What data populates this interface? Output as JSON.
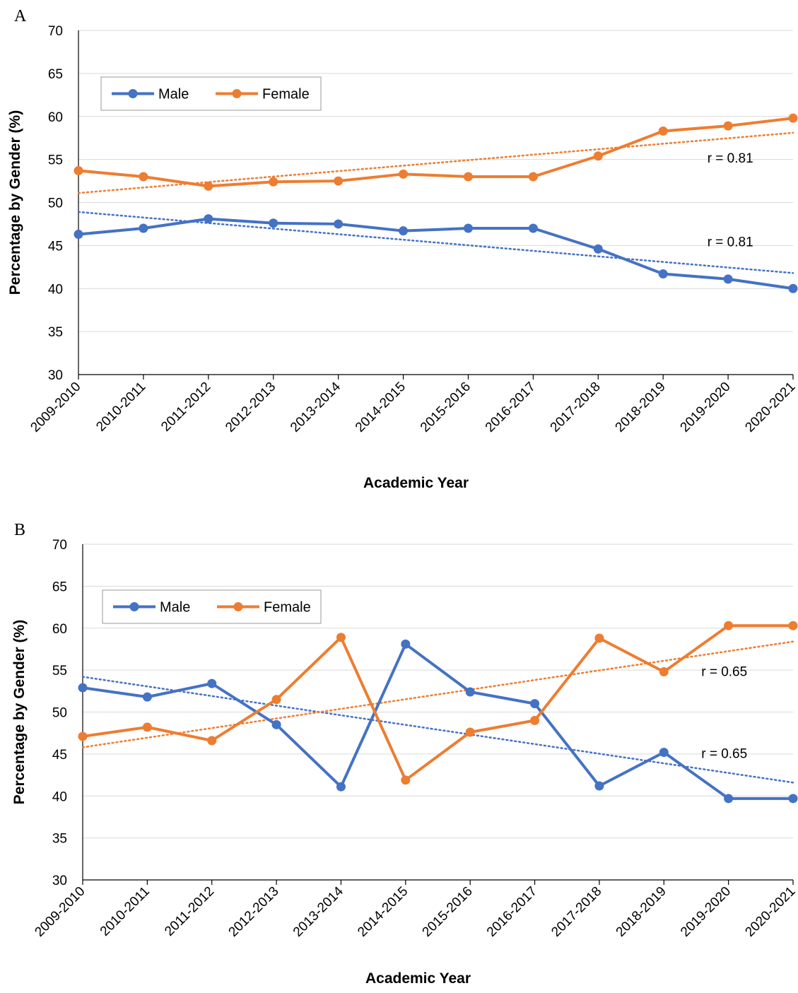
{
  "chart_data": [
    {
      "panel": "A",
      "type": "line",
      "categories": [
        "2009-2010",
        "2010-2011",
        "2011-2012",
        "2012-2013",
        "2013-2014",
        "2014-2015",
        "2015-2016",
        "2016-2017",
        "2017-2018",
        "2018-2019",
        "2019-2020",
        "2020-2021"
      ],
      "series": [
        {
          "name": "Male",
          "color": "#4472C4",
          "values": [
            46.3,
            47.0,
            48.1,
            47.6,
            47.5,
            46.7,
            47.0,
            47.0,
            44.6,
            41.7,
            41.1,
            40.0
          ],
          "trendline": {
            "start": 48.9,
            "end": 41.8
          }
        },
        {
          "name": "Female",
          "color": "#ED7D31",
          "values": [
            53.7,
            53.0,
            51.9,
            52.4,
            52.5,
            53.3,
            53.0,
            53.0,
            55.4,
            58.3,
            58.9,
            59.8
          ],
          "trendline": {
            "start": 51.1,
            "end": 58.1
          }
        }
      ],
      "annotations": [
        {
          "text": "r = 0.81",
          "at": [
            9.8,
            55.2
          ]
        },
        {
          "text": "r = 0.81",
          "at": [
            9.8,
            45.5
          ]
        }
      ],
      "xlabel": "Academic Year",
      "ylabel": "Percentage by Gender (%)",
      "ylim": [
        30,
        70
      ],
      "yticks": [
        30,
        35,
        40,
        45,
        50,
        55,
        60,
        65,
        70
      ],
      "grid": true,
      "legend": "top-left"
    },
    {
      "panel": "B",
      "type": "line",
      "categories": [
        "2009-2010",
        "2010-2011",
        "2011-2012",
        "2012-2013",
        "2013-2014",
        "2014-2015",
        "2015-2016",
        "2016-2017",
        "2017-2018",
        "2018-2019",
        "2019-2020",
        "2020-2021"
      ],
      "series": [
        {
          "name": "Male",
          "color": "#4472C4",
          "values": [
            52.9,
            51.8,
            53.4,
            48.5,
            41.1,
            58.1,
            52.4,
            51.0,
            41.2,
            45.2,
            39.7,
            39.7
          ],
          "trendline": {
            "start": 54.2,
            "end": 41.6
          }
        },
        {
          "name": "Female",
          "color": "#ED7D31",
          "values": [
            47.1,
            48.2,
            46.6,
            51.5,
            58.9,
            41.9,
            47.6,
            49.0,
            58.8,
            54.8,
            60.3,
            60.3
          ],
          "trendline": {
            "start": 45.8,
            "end": 58.4
          }
        }
      ],
      "annotations": [
        {
          "text": "r = 0.65",
          "at": [
            9.7,
            54.9
          ]
        },
        {
          "text": "r = 0.65",
          "at": [
            9.7,
            45.1
          ]
        }
      ],
      "xlabel": "Academic Year",
      "ylabel": "Percentage by Gender (%)",
      "ylim": [
        30,
        70
      ],
      "yticks": [
        30,
        35,
        40,
        45,
        50,
        55,
        60,
        65,
        70
      ],
      "grid": true,
      "legend": "top-left"
    }
  ]
}
